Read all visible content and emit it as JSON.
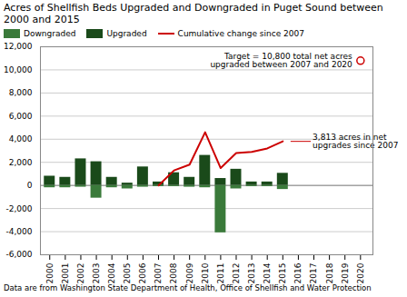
{
  "chart_data": {
    "type": "bar",
    "title": "Acres of Shellfish Beds Upgraded and Downgraded in Puget Sound between 2000 and 2015",
    "footnote": "Data are from Washington State Department of Health, Office of Shellfish and Water Protection",
    "x": [
      2000,
      2001,
      2002,
      2003,
      2004,
      2005,
      2006,
      2007,
      2008,
      2009,
      2010,
      2011,
      2012,
      2013,
      2014,
      2015
    ],
    "series": [
      {
        "name": "Downgraded",
        "color": "#3a7a3a",
        "values": [
          -200,
          -200,
          -150,
          -1100,
          -200,
          -300,
          -150,
          -100,
          -100,
          -150,
          -200,
          -4100,
          -300,
          -100,
          -100,
          -350
        ]
      },
      {
        "name": "Upgraded",
        "color": "#1a4a1a",
        "values": [
          800,
          700,
          2300,
          2050,
          700,
          200,
          1600,
          300,
          1100,
          700,
          2600,
          600,
          1400,
          300,
          300,
          1050
        ]
      },
      {
        "name": "Cumulative change since 2007",
        "type": "line",
        "color": "#cc0000",
        "values": [
          null,
          null,
          null,
          null,
          null,
          null,
          null,
          0,
          1300,
          1800,
          4600,
          1500,
          2800,
          2900,
          3200,
          3813
        ]
      }
    ],
    "annotations": [
      {
        "text": "Target = 10,800 total net acres\nupgraded between 2007 and 2020",
        "x": 2020,
        "y": 10800,
        "marker": "o",
        "color": "#cc0000"
      },
      {
        "text": "3,813 acres in net\nupgrades since 2007",
        "x": 2015.5,
        "y": 3813,
        "color": "#cc0000"
      }
    ],
    "xlim": [
      1999.4,
      2020.8
    ],
    "xticks": [
      2000,
      2001,
      2002,
      2003,
      2004,
      2005,
      2006,
      2007,
      2008,
      2009,
      2010,
      2011,
      2012,
      2013,
      2014,
      2015,
      2016,
      2017,
      2018,
      2019,
      2020
    ],
    "ylim": [
      -6000,
      12000
    ],
    "yticks": [
      {
        "value": -6000,
        "label": "-6,000"
      },
      {
        "value": -4000,
        "label": "-4,000"
      },
      {
        "value": -2000,
        "label": "-2,000"
      },
      0,
      {
        "value": 2000,
        "label": "2,000"
      },
      {
        "value": 4000,
        "label": "4,000"
      },
      {
        "value": 6000,
        "label": "6,000"
      },
      {
        "value": 8000,
        "label": "8,000"
      },
      {
        "value": 10000,
        "label": "10,000"
      },
      {
        "value": 12000,
        "label": "12,000"
      }
    ],
    "grid": true,
    "legend": "upper left"
  }
}
